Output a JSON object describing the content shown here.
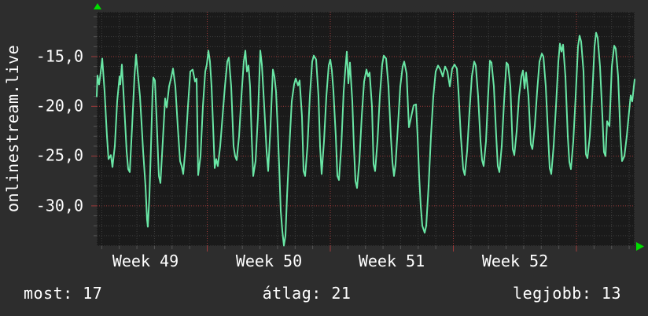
{
  "page": {
    "background": "#2d2d2d",
    "text_color": "#ffffff"
  },
  "title": {
    "text": "onlinestream.live"
  },
  "footer": {
    "now": "most: 17",
    "average": "átlag: 21",
    "best": "legjobb: 13"
  },
  "chart_data": {
    "type": "line",
    "title": "onlinestream.live",
    "xlabel": "",
    "ylabel": "",
    "y_tick_labels": [
      "-15,0",
      "-20,0",
      "-25,0",
      "-30,0"
    ],
    "y_ticks": [
      -15,
      -20,
      -25,
      -30
    ],
    "y_minor_step": 1,
    "ylim": [
      -34.0,
      -10.5
    ],
    "x_tick_labels": [
      "Week 49",
      "Week 50",
      "Week 51",
      "Week 52"
    ],
    "x_axis": {
      "unit": "days",
      "total_days": 30.6,
      "minor_step_days": 1,
      "major_step_days": 7
    },
    "grid": {
      "on": true,
      "minor_color": "#3e3e3e",
      "major_color": "#9e3a3a",
      "style": "dotted"
    },
    "plot_bg": "#1a1a1a",
    "line_color": "#69e6a5",
    "arrow_color": "#00dd00",
    "legend_position": "none",
    "stats": {
      "most": 17,
      "atlag": 21,
      "legjobb": 13
    },
    "series": [
      {
        "name": "onlinestream.live",
        "points_format": "[x_px_within_plot_0_to_684, value]",
        "points": [
          [
            0,
            -19
          ],
          [
            1,
            -16.9
          ],
          [
            3,
            -17.8
          ],
          [
            5,
            -16.6
          ],
          [
            7,
            -15.2
          ],
          [
            10,
            -18.5
          ],
          [
            13,
            -23
          ],
          [
            15,
            -25.3
          ],
          [
            18,
            -24.9
          ],
          [
            20,
            -26.1
          ],
          [
            23,
            -24
          ],
          [
            26,
            -19.5
          ],
          [
            29,
            -17
          ],
          [
            30,
            -17.8
          ],
          [
            32,
            -15.8
          ],
          [
            35,
            -20
          ],
          [
            38,
            -24.5
          ],
          [
            40,
            -26.3
          ],
          [
            42,
            -26.6
          ],
          [
            45,
            -22
          ],
          [
            48,
            -17
          ],
          [
            50,
            -14.8
          ],
          [
            52,
            -16.5
          ],
          [
            55,
            -19
          ],
          [
            57,
            -21.7
          ],
          [
            59,
            -24.5
          ],
          [
            62,
            -28
          ],
          [
            64,
            -31.4
          ],
          [
            65,
            -32.1
          ],
          [
            67,
            -29
          ],
          [
            69,
            -24
          ],
          [
            71,
            -18.5
          ],
          [
            72,
            -17.1
          ],
          [
            74,
            -17.4
          ],
          [
            76,
            -21
          ],
          [
            79,
            -27
          ],
          [
            81,
            -27.7
          ],
          [
            84,
            -23.5
          ],
          [
            87,
            -19.2
          ],
          [
            89,
            -20.1
          ],
          [
            92,
            -18
          ],
          [
            95,
            -17
          ],
          [
            97,
            -16.2
          ],
          [
            100,
            -18
          ],
          [
            103,
            -22
          ],
          [
            106,
            -25.5
          ],
          [
            108,
            -26
          ],
          [
            110,
            -26.8
          ],
          [
            113,
            -24
          ],
          [
            116,
            -20
          ],
          [
            119,
            -16.5
          ],
          [
            122,
            -16.3
          ],
          [
            125,
            -17.5
          ],
          [
            127,
            -17.2
          ],
          [
            129,
            -26.9
          ],
          [
            132,
            -25
          ],
          [
            135,
            -20
          ],
          [
            138,
            -16.5
          ],
          [
            140,
            -15.8
          ],
          [
            142,
            -14.4
          ],
          [
            144,
            -15.5
          ],
          [
            146,
            -18
          ],
          [
            148,
            -22
          ],
          [
            150,
            -26.2
          ],
          [
            152,
            -25.3
          ],
          [
            154,
            -26
          ],
          [
            157,
            -24
          ],
          [
            160,
            -21
          ],
          [
            163,
            -18
          ],
          [
            166,
            -15.5
          ],
          [
            168,
            -15.1
          ],
          [
            171,
            -18
          ],
          [
            174,
            -24
          ],
          [
            176,
            -25
          ],
          [
            178,
            -25.4
          ],
          [
            181,
            -23
          ],
          [
            184,
            -19
          ],
          [
            187,
            -15.5
          ],
          [
            189,
            -14.4
          ],
          [
            191,
            -16.5
          ],
          [
            193,
            -15.9
          ],
          [
            195,
            -18
          ],
          [
            197,
            -23
          ],
          [
            199,
            -27
          ],
          [
            202,
            -25.5
          ],
          [
            205,
            -21
          ],
          [
            208,
            -14.4
          ],
          [
            210,
            -15.8
          ],
          [
            213,
            -20
          ],
          [
            216,
            -24.5
          ],
          [
            218,
            -26.5
          ],
          [
            221,
            -22
          ],
          [
            224,
            -16.3
          ],
          [
            226,
            -17
          ],
          [
            228,
            -18.5
          ],
          [
            230,
            -22
          ],
          [
            232,
            -26
          ],
          [
            234,
            -30.5
          ],
          [
            236,
            -32.5
          ],
          [
            238,
            -34
          ],
          [
            240,
            -33
          ],
          [
            242,
            -29
          ],
          [
            245,
            -24
          ],
          [
            248,
            -19.5
          ],
          [
            251,
            -17.8
          ],
          [
            253,
            -17.2
          ],
          [
            256,
            -17.9
          ],
          [
            258,
            -17.4
          ],
          [
            261,
            -21
          ],
          [
            263,
            -26.5
          ],
          [
            265,
            -27
          ],
          [
            268,
            -24
          ],
          [
            271,
            -19
          ],
          [
            274,
            -15.5
          ],
          [
            276,
            -14.9
          ],
          [
            279,
            -15.3
          ],
          [
            282,
            -19
          ],
          [
            284,
            -24
          ],
          [
            286,
            -26.8
          ],
          [
            289,
            -23.5
          ],
          [
            292,
            -19
          ],
          [
            295,
            -15.9
          ],
          [
            297,
            -15.3
          ],
          [
            299,
            -16.4
          ],
          [
            301,
            -18.5
          ],
          [
            304,
            -23
          ],
          [
            306,
            -27
          ],
          [
            308,
            -27.4
          ],
          [
            311,
            -24
          ],
          [
            314,
            -18.5
          ],
          [
            316,
            -16.4
          ],
          [
            318,
            -14.5
          ],
          [
            320,
            -17.7
          ],
          [
            322,
            -15.6
          ],
          [
            325,
            -19.5
          ],
          [
            327,
            -24
          ],
          [
            329,
            -27.5
          ],
          [
            331,
            -28.2
          ],
          [
            334,
            -25.5
          ],
          [
            337,
            -21
          ],
          [
            340,
            -17.5
          ],
          [
            343,
            -16.3
          ],
          [
            345,
            -17
          ],
          [
            347,
            -16.6
          ],
          [
            350,
            -20
          ],
          [
            352,
            -25.8
          ],
          [
            354,
            -26.5
          ],
          [
            357,
            -23.5
          ],
          [
            360,
            -19
          ],
          [
            363,
            -15.8
          ],
          [
            365,
            -14.9
          ],
          [
            368,
            -15.2
          ],
          [
            371,
            -18
          ],
          [
            374,
            -23
          ],
          [
            376,
            -25.6
          ],
          [
            378,
            -27
          ],
          [
            380,
            -25.8
          ],
          [
            383,
            -22
          ],
          [
            386,
            -18
          ],
          [
            389,
            -16
          ],
          [
            391,
            -15.5
          ],
          [
            394,
            -16.7
          ],
          [
            397,
            -22.1
          ],
          [
            400,
            -21
          ],
          [
            403,
            -19.9
          ],
          [
            406,
            -19.8
          ],
          [
            408,
            -23
          ],
          [
            410,
            -27
          ],
          [
            412,
            -30
          ],
          [
            414,
            -32
          ],
          [
            417,
            -32.7
          ],
          [
            419,
            -32
          ],
          [
            422,
            -28
          ],
          [
            425,
            -23
          ],
          [
            428,
            -19
          ],
          [
            431,
            -16.5
          ],
          [
            434,
            -15.9
          ],
          [
            437,
            -16.3
          ],
          [
            440,
            -17
          ],
          [
            443,
            -16
          ],
          [
            446,
            -16.5
          ],
          [
            449,
            -18
          ],
          [
            452,
            -16.2
          ],
          [
            455,
            -15.8
          ],
          [
            458,
            -16.2
          ],
          [
            460,
            -18.5
          ],
          [
            463,
            -23
          ],
          [
            466,
            -26.3
          ],
          [
            468,
            -26.9
          ],
          [
            471,
            -24.5
          ],
          [
            474,
            -20.5
          ],
          [
            477,
            -17
          ],
          [
            480,
            -15.5
          ],
          [
            482,
            -15.9
          ],
          [
            485,
            -19
          ],
          [
            488,
            -23.5
          ],
          [
            490,
            -25.4
          ],
          [
            492,
            -26
          ],
          [
            495,
            -23.5
          ],
          [
            497,
            -20
          ],
          [
            500,
            -15.4
          ],
          [
            502,
            -15.6
          ],
          [
            505,
            -18
          ],
          [
            508,
            -23
          ],
          [
            510,
            -26
          ],
          [
            512,
            -26.6
          ],
          [
            515,
            -24
          ],
          [
            518,
            -19.5
          ],
          [
            521,
            -15.6
          ],
          [
            523,
            -15.8
          ],
          [
            526,
            -18
          ],
          [
            529,
            -24.3
          ],
          [
            531,
            -24.9
          ],
          [
            534,
            -22.5
          ],
          [
            537,
            -19
          ],
          [
            540,
            -17
          ],
          [
            542,
            -16.4
          ],
          [
            544,
            -18.2
          ],
          [
            546,
            -16.6
          ],
          [
            549,
            -19
          ],
          [
            552,
            -23.8
          ],
          [
            554,
            -24.3
          ],
          [
            557,
            -22
          ],
          [
            560,
            -18.5
          ],
          [
            563,
            -15.5
          ],
          [
            566,
            -14.7
          ],
          [
            568,
            -15
          ],
          [
            571,
            -18
          ],
          [
            574,
            -23
          ],
          [
            576,
            -26.2
          ],
          [
            578,
            -26.8
          ],
          [
            581,
            -24
          ],
          [
            584,
            -20
          ],
          [
            587,
            -15.5
          ],
          [
            589,
            -13.7
          ],
          [
            591,
            -14.5
          ],
          [
            593,
            -13.8
          ],
          [
            596,
            -17
          ],
          [
            599,
            -23
          ],
          [
            601,
            -25.6
          ],
          [
            603,
            -26.3
          ],
          [
            606,
            -23.5
          ],
          [
            609,
            -19
          ],
          [
            612,
            -14
          ],
          [
            614,
            -12.9
          ],
          [
            616,
            -13.5
          ],
          [
            619,
            -16.5
          ],
          [
            622,
            -24.8
          ],
          [
            624,
            -25.2
          ],
          [
            627,
            -23
          ],
          [
            630,
            -19
          ],
          [
            633,
            -14
          ],
          [
            635,
            -12.6
          ],
          [
            637,
            -13.1
          ],
          [
            640,
            -16
          ],
          [
            643,
            -21
          ],
          [
            645,
            -24.6
          ],
          [
            647,
            -25
          ],
          [
            649,
            -21.5
          ],
          [
            652,
            -22
          ],
          [
            655,
            -16
          ],
          [
            658,
            -13.9
          ],
          [
            660,
            -14.2
          ],
          [
            663,
            -17
          ],
          [
            666,
            -23
          ],
          [
            668,
            -25.5
          ],
          [
            671,
            -25
          ],
          [
            674,
            -23
          ],
          [
            677,
            -20.5
          ],
          [
            679,
            -18.9
          ],
          [
            681,
            -19.5
          ],
          [
            683,
            -18
          ],
          [
            684,
            -17.3
          ]
        ]
      }
    ]
  }
}
